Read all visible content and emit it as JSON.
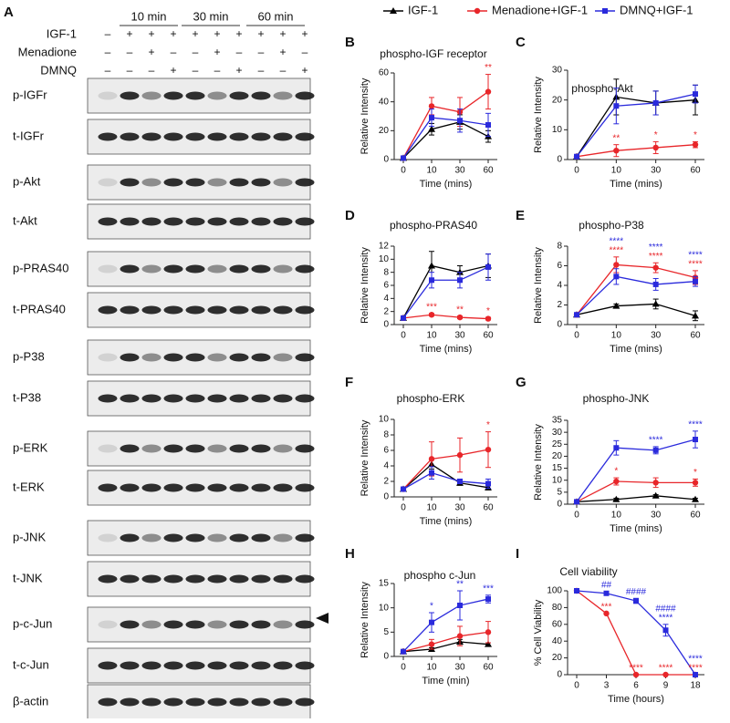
{
  "legend": [
    {
      "label": "IGF-1",
      "color": "#000000",
      "marker": "triangle"
    },
    {
      "label": "Menadione+IGF-1",
      "color": "#e8262a",
      "marker": "circle"
    },
    {
      "label": "DMNQ+IGF-1",
      "color": "#2a2adc",
      "marker": "square"
    }
  ],
  "blot": {
    "panel": "A",
    "time_headers": [
      "10 min",
      "30 min",
      "60 min"
    ],
    "treatments": [
      {
        "label": "IGF-1",
        "signs": [
          "–",
          "+",
          "+",
          "+",
          "+",
          "+",
          "+",
          "+",
          "+",
          "+"
        ]
      },
      {
        "label": "Menadione",
        "signs": [
          "–",
          "–",
          "+",
          "–",
          "–",
          "+",
          "–",
          "–",
          "+",
          "–"
        ]
      },
      {
        "label": "DMNQ",
        "signs": [
          "–",
          "–",
          "–",
          "+",
          "–",
          "–",
          "+",
          "–",
          "–",
          "+"
        ]
      }
    ],
    "bands": [
      "p-IGFr",
      "t-IGFr",
      "p-Akt",
      "t-Akt",
      "p-PRAS40",
      "t-PRAS40",
      "p-P38",
      "t-P38",
      "p-ERK",
      "t-ERK",
      "p-JNK",
      "t-JNK",
      "p-c-Jun",
      "t-c-Jun",
      "β-actin"
    ]
  },
  "chart_data": [
    {
      "type": "line",
      "panel": "B",
      "title": "phospho-IGF receptor",
      "x_label": "Time (mins)",
      "y_label": "Relative Intensity",
      "categories": [
        "0",
        "10",
        "30",
        "60"
      ],
      "ylim": [
        0,
        60
      ],
      "yticks": [
        0,
        20,
        40,
        60
      ],
      "series": [
        {
          "color": "#000000",
          "marker": "triangle",
          "values": [
            1,
            21,
            26,
            16
          ],
          "errors": [
            0,
            4,
            5,
            4
          ],
          "significance": [
            null,
            null,
            null,
            null
          ]
        },
        {
          "color": "#e8262a",
          "marker": "circle",
          "values": [
            1,
            37,
            33,
            47
          ],
          "errors": [
            0,
            6,
            10,
            12
          ],
          "significance": [
            null,
            null,
            null,
            [
              "**"
            ]
          ]
        },
        {
          "color": "#2a2adc",
          "marker": "square",
          "values": [
            1,
            29,
            27,
            24
          ],
          "errors": [
            0,
            6,
            8,
            8
          ],
          "significance": [
            null,
            null,
            null,
            null
          ]
        }
      ]
    },
    {
      "type": "line",
      "panel": "C",
      "title": "phospho-Akt",
      "x_label": "Time (mins)",
      "y_label": "Relative Intensity",
      "categories": [
        "0",
        "10",
        "30",
        "60"
      ],
      "ylim": [
        0,
        30
      ],
      "yticks": [
        0,
        10,
        20,
        30
      ],
      "series": [
        {
          "color": "#000000",
          "marker": "triangle",
          "values": [
            1,
            21,
            19,
            20
          ],
          "errors": [
            0,
            6,
            4,
            5
          ],
          "significance": [
            null,
            null,
            null,
            null
          ]
        },
        {
          "color": "#e8262a",
          "marker": "circle",
          "values": [
            1,
            3,
            4,
            5
          ],
          "errors": [
            0,
            2,
            2,
            1
          ],
          "significance": [
            null,
            [
              "**"
            ],
            [
              "*"
            ],
            [
              "*"
            ]
          ]
        },
        {
          "color": "#2a2adc",
          "marker": "square",
          "values": [
            1,
            18,
            19,
            22
          ],
          "errors": [
            0,
            6,
            4,
            3
          ],
          "significance": [
            null,
            null,
            null,
            null
          ]
        }
      ]
    },
    {
      "type": "line",
      "panel": "D",
      "title": "phospho-PRAS40",
      "x_label": "Time (mins)",
      "y_label": "Relative Intensity",
      "categories": [
        "0",
        "10",
        "30",
        "60"
      ],
      "ylim": [
        0,
        12
      ],
      "yticks": [
        0,
        2,
        4,
        6,
        8,
        10,
        12
      ],
      "series": [
        {
          "color": "#000000",
          "marker": "triangle",
          "values": [
            1,
            9,
            8,
            9
          ],
          "errors": [
            0,
            2.2,
            1,
            1.8
          ],
          "significance": [
            null,
            null,
            null,
            null
          ]
        },
        {
          "color": "#e8262a",
          "marker": "circle",
          "values": [
            1,
            1.5,
            1.1,
            0.9
          ],
          "errors": [
            0,
            0.2,
            0.2,
            0.2
          ],
          "significance": [
            null,
            [
              "***"
            ],
            [
              "**"
            ],
            [
              "*"
            ]
          ]
        },
        {
          "color": "#2a2adc",
          "marker": "square",
          "values": [
            1,
            6.8,
            6.8,
            8.8
          ],
          "errors": [
            0,
            1.2,
            1.2,
            2
          ],
          "significance": [
            null,
            null,
            null,
            null
          ]
        }
      ]
    },
    {
      "type": "line",
      "panel": "E",
      "title": "phospho-P38",
      "x_label": "Time (mins)",
      "y_label": "Relative Intensity",
      "categories": [
        "0",
        "10",
        "30",
        "60"
      ],
      "ylim": [
        0,
        8
      ],
      "yticks": [
        0,
        2,
        4,
        6,
        8
      ],
      "series": [
        {
          "color": "#000000",
          "marker": "triangle",
          "values": [
            1,
            1.9,
            2.1,
            0.9
          ],
          "errors": [
            0,
            0.2,
            0.5,
            0.5
          ],
          "significance": [
            null,
            null,
            null,
            null
          ]
        },
        {
          "color": "#e8262a",
          "marker": "circle",
          "values": [
            1,
            6.1,
            5.8,
            4.8
          ],
          "errors": [
            0,
            0.8,
            0.5,
            0.7
          ],
          "significance": [
            null,
            [
              "****"
            ],
            [
              "****"
            ],
            [
              "****"
            ]
          ]
        },
        {
          "color": "#2a2adc",
          "marker": "square",
          "values": [
            1,
            4.9,
            4.1,
            4.4
          ],
          "errors": [
            0,
            0.8,
            0.6,
            0.5
          ],
          "significance": [
            null,
            [
              "****"
            ],
            [
              "****"
            ],
            [
              "****"
            ]
          ]
        }
      ]
    },
    {
      "type": "line",
      "panel": "F",
      "title": "phospho-ERK",
      "x_label": "Time (mins)",
      "y_label": "Relative Intensity",
      "categories": [
        "0",
        "10",
        "30",
        "60"
      ],
      "ylim": [
        0,
        10
      ],
      "yticks": [
        0,
        2,
        4,
        6,
        8,
        10
      ],
      "series": [
        {
          "color": "#000000",
          "marker": "triangle",
          "values": [
            1,
            4.2,
            1.8,
            1.2
          ],
          "errors": [
            0,
            0.6,
            0.3,
            0.3
          ],
          "significance": [
            null,
            null,
            null,
            null
          ]
        },
        {
          "color": "#e8262a",
          "marker": "circle",
          "values": [
            1,
            4.9,
            5.4,
            6.1
          ],
          "errors": [
            0,
            2.2,
            2.2,
            2.3
          ],
          "significance": [
            null,
            null,
            null,
            [
              "*"
            ]
          ]
        },
        {
          "color": "#2a2adc",
          "marker": "square",
          "values": [
            1,
            3.1,
            2,
            1.7
          ],
          "errors": [
            0,
            0.8,
            0.3,
            0.6
          ],
          "significance": [
            null,
            null,
            null,
            null
          ]
        }
      ]
    },
    {
      "type": "line",
      "panel": "G",
      "title": "phospho-JNK",
      "x_label": "Time (mins)",
      "y_label": "Relative Intensity",
      "categories": [
        "0",
        "10",
        "30",
        "60"
      ],
      "ylim": [
        0,
        35
      ],
      "yticks": [
        0,
        5,
        10,
        15,
        20,
        25,
        30,
        35
      ],
      "series": [
        {
          "color": "#000000",
          "marker": "triangle",
          "values": [
            1,
            2,
            3.5,
            2
          ],
          "errors": [
            0,
            0.5,
            0.5,
            0.5
          ],
          "significance": [
            null,
            null,
            null,
            null
          ]
        },
        {
          "color": "#e8262a",
          "marker": "circle",
          "values": [
            1,
            9.5,
            9,
            9
          ],
          "errors": [
            0,
            1.5,
            2,
            1.5
          ],
          "significance": [
            null,
            [
              "*"
            ],
            null,
            [
              "*"
            ]
          ]
        },
        {
          "color": "#2a2adc",
          "marker": "square",
          "values": [
            1,
            23.5,
            22.5,
            27
          ],
          "errors": [
            0,
            3,
            1.5,
            3.5
          ],
          "significance": [
            null,
            null,
            [
              "****"
            ],
            [
              "****"
            ]
          ]
        }
      ]
    },
    {
      "type": "line",
      "panel": "H",
      "title": "phospho c-Jun",
      "x_label": "Time (min)",
      "y_label": "Relative Intensity",
      "categories": [
        "0",
        "10",
        "30",
        "60"
      ],
      "ylim": [
        0,
        15
      ],
      "yticks": [
        0,
        5,
        10,
        15
      ],
      "series": [
        {
          "color": "#000000",
          "marker": "triangle",
          "values": [
            1,
            1.5,
            3,
            2.5
          ],
          "errors": [
            0,
            0.3,
            0.5,
            0.3
          ],
          "significance": [
            null,
            null,
            null,
            null
          ]
        },
        {
          "color": "#e8262a",
          "marker": "circle",
          "values": [
            1,
            2.5,
            4.2,
            5
          ],
          "errors": [
            0,
            1,
            2,
            2.2
          ],
          "significance": [
            null,
            null,
            null,
            null
          ]
        },
        {
          "color": "#2a2adc",
          "marker": "square",
          "values": [
            1,
            7,
            10.5,
            11.8
          ],
          "errors": [
            0,
            2,
            3,
            0.8
          ],
          "significance": [
            null,
            [
              "*"
            ],
            [
              "**"
            ],
            [
              "***"
            ]
          ]
        }
      ]
    },
    {
      "type": "line",
      "panel": "I",
      "title": "Cell viability",
      "x_label": "Time (hours)",
      "y_label": "% Cell Viability",
      "categories": [
        "0",
        "3",
        "6",
        "9",
        "18"
      ],
      "ylim": [
        0,
        100
      ],
      "yticks": [
        0,
        20,
        40,
        60,
        80,
        100
      ],
      "series": [
        {
          "color": "#e8262a",
          "marker": "circle",
          "values": [
            100,
            73,
            0,
            0,
            0
          ],
          "errors": [
            0,
            0,
            0,
            0,
            0
          ],
          "significance": [
            null,
            [
              "***"
            ],
            [
              "****"
            ],
            [
              "****"
            ],
            [
              "****"
            ]
          ]
        },
        {
          "color": "#2a2adc",
          "marker": "square",
          "values": [
            100,
            97,
            88,
            53,
            0
          ],
          "errors": [
            0,
            2,
            3,
            7,
            0
          ],
          "significance": [
            null,
            [
              "##"
            ],
            [
              "####"
            ],
            [
              "****",
              "####"
            ],
            [
              "****"
            ]
          ]
        }
      ]
    }
  ]
}
